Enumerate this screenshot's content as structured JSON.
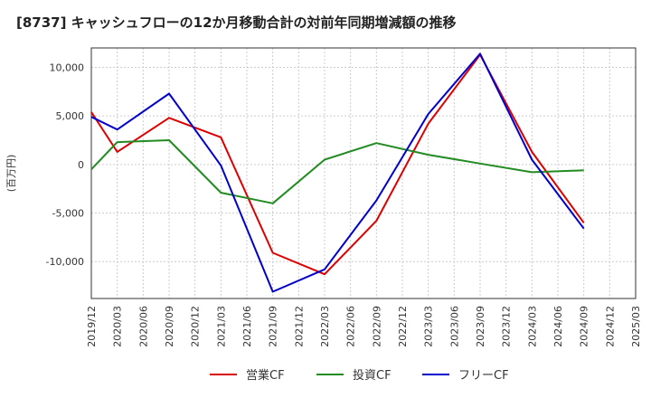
{
  "chart_data": {
    "type": "line",
    "title": "[8737]  キャッシュフローの12か月移動合計の対前年同期増減額の推移",
    "ylabel": "(百万円)",
    "xlabel": "",
    "x_ticks": [
      "2019/12",
      "2020/03",
      "2020/06",
      "2020/09",
      "2020/12",
      "2021/03",
      "2021/06",
      "2021/09",
      "2021/12",
      "2022/03",
      "2022/06",
      "2022/09",
      "2022/12",
      "2023/03",
      "2023/06",
      "2023/09",
      "2023/12",
      "2024/03",
      "2024/06",
      "2024/09",
      "2024/12",
      "2025/03"
    ],
    "y_ticks": [
      10000,
      5000,
      0,
      -5000,
      -10000
    ],
    "y_tick_labels": [
      "10,000",
      "5,000",
      "0",
      "-5,000",
      "-10,000"
    ],
    "ylim": [
      -13800,
      12000
    ],
    "grid": true,
    "legend_position": "bottom",
    "series": [
      {
        "name": "営業CF",
        "color": "#dd0000",
        "points": [
          {
            "x": "2019/12",
            "y": 5400
          },
          {
            "x": "2020/03",
            "y": 1300
          },
          {
            "x": "2020/09",
            "y": 4800
          },
          {
            "x": "2021/03",
            "y": 2800
          },
          {
            "x": "2021/09",
            "y": -9100
          },
          {
            "x": "2022/03",
            "y": -11300
          },
          {
            "x": "2022/09",
            "y": -5800
          },
          {
            "x": "2023/03",
            "y": 4200
          },
          {
            "x": "2023/09",
            "y": 11300
          },
          {
            "x": "2024/03",
            "y": 1300
          },
          {
            "x": "2024/09",
            "y": -6000
          }
        ]
      },
      {
        "name": "投資CF",
        "color": "#228b22",
        "points": [
          {
            "x": "2019/12",
            "y": -500
          },
          {
            "x": "2020/03",
            "y": 2300
          },
          {
            "x": "2020/09",
            "y": 2500
          },
          {
            "x": "2021/03",
            "y": -2900
          },
          {
            "x": "2021/09",
            "y": -4000
          },
          {
            "x": "2022/03",
            "y": 500
          },
          {
            "x": "2022/09",
            "y": 2200
          },
          {
            "x": "2023/03",
            "y": 1000
          },
          {
            "x": "2023/09",
            "y": 100
          },
          {
            "x": "2024/03",
            "y": -800
          },
          {
            "x": "2024/09",
            "y": -600
          }
        ]
      },
      {
        "name": "フリーCF",
        "color": "#0000cc",
        "points": [
          {
            "x": "2019/12",
            "y": 4900
          },
          {
            "x": "2020/03",
            "y": 3600
          },
          {
            "x": "2020/09",
            "y": 7300
          },
          {
            "x": "2021/03",
            "y": -100
          },
          {
            "x": "2021/09",
            "y": -13100
          },
          {
            "x": "2022/03",
            "y": -10800
          },
          {
            "x": "2022/09",
            "y": -3700
          },
          {
            "x": "2023/03",
            "y": 5200
          },
          {
            "x": "2023/09",
            "y": 11400
          },
          {
            "x": "2024/03",
            "y": 500
          },
          {
            "x": "2024/09",
            "y": -6600
          }
        ]
      }
    ]
  }
}
